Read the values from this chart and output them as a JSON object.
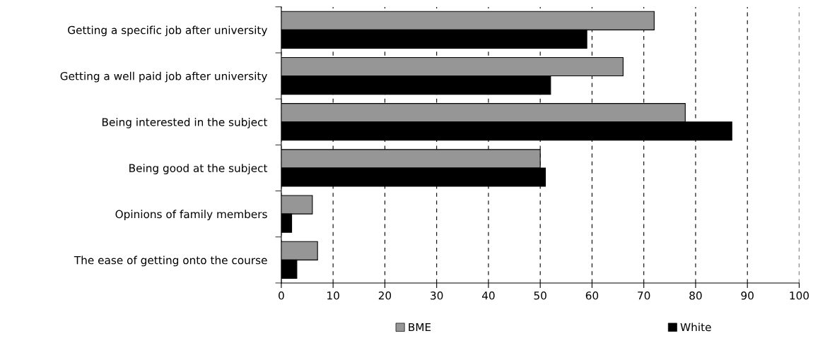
{
  "chart_data": {
    "type": "bar",
    "orientation": "horizontal",
    "categories": [
      "Getting a specific job after university",
      "Getting a well paid job after university",
      "Being interested in the subject",
      "Being good at the subject",
      "Opinions of family members",
      "The ease of getting onto the course"
    ],
    "series": [
      {
        "name": "BME",
        "color": "#969696",
        "values": [
          72,
          66,
          78,
          50,
          6,
          7
        ]
      },
      {
        "name": "White",
        "color": "#000000",
        "values": [
          59,
          52,
          87,
          51,
          2,
          3
        ]
      }
    ],
    "xlim": [
      0,
      100
    ],
    "xticks": [
      0,
      10,
      20,
      30,
      40,
      50,
      60,
      70,
      80,
      90,
      100
    ],
    "grid": "x",
    "legend": "bottom"
  }
}
